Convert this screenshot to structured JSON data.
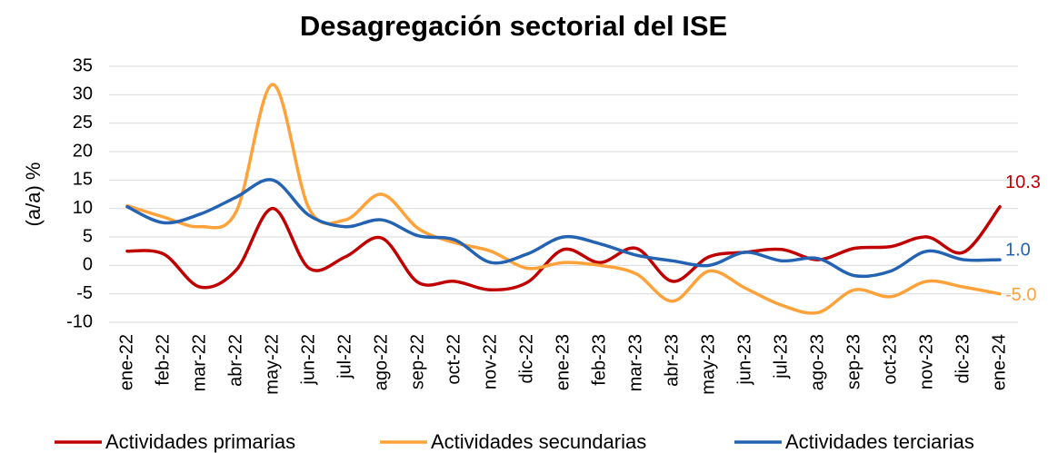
{
  "chart_data": {
    "type": "line",
    "title": "Desagregación sectorial del ISE",
    "y_label": "(a/a) %",
    "categories": [
      "ene-22",
      "feb-22",
      "mar-22",
      "abr-22",
      "may-22",
      "jun-22",
      "jul-22",
      "ago-22",
      "sep-22",
      "oct-22",
      "nov-22",
      "dic-22",
      "ene-23",
      "feb-23",
      "mar-23",
      "abr-23",
      "may-23",
      "jun-23",
      "jul-23",
      "ago-23",
      "sep-23",
      "oct-23",
      "nov-23",
      "dic-23",
      "ene-24"
    ],
    "series": [
      {
        "name": "Actividades primarias",
        "color": "#c00000",
        "values": [
          2.5,
          2.0,
          -3.8,
          -0.8,
          10.0,
          -0.5,
          1.5,
          4.8,
          -3.0,
          -2.8,
          -4.3,
          -3.0,
          2.8,
          0.5,
          3.0,
          -2.8,
          1.5,
          2.3,
          2.8,
          1.0,
          3.0,
          3.3,
          5.0,
          2.3,
          10.3
        ],
        "value_labels": [
          null,
          null,
          null,
          null,
          null,
          null,
          null,
          null,
          null,
          null,
          null,
          null,
          null,
          null,
          null,
          null,
          null,
          null,
          null,
          null,
          null,
          null,
          null,
          null,
          "10.3"
        ]
      },
      {
        "name": "Actividades secundarias",
        "color": "#ffa23a",
        "values": [
          10.5,
          8.5,
          6.8,
          9.5,
          31.8,
          10.0,
          8.0,
          12.5,
          6.5,
          4.0,
          2.5,
          -0.5,
          0.5,
          0.0,
          -1.5,
          -6.3,
          -1.0,
          -4.0,
          -7.0,
          -8.3,
          -4.3,
          -5.5,
          -2.8,
          -3.8,
          -5.0
        ],
        "value_labels": [
          null,
          null,
          null,
          null,
          null,
          null,
          null,
          null,
          null,
          null,
          null,
          null,
          null,
          null,
          null,
          null,
          null,
          null,
          null,
          null,
          null,
          null,
          null,
          null,
          "-5.0"
        ]
      },
      {
        "name": "Actividades terciarias",
        "color": "#2463b2",
        "values": [
          10.3,
          7.5,
          9.0,
          12.0,
          15.0,
          8.8,
          6.8,
          8.0,
          5.2,
          4.5,
          0.5,
          2.0,
          5.0,
          3.8,
          1.8,
          0.8,
          0.0,
          2.3,
          0.8,
          1.2,
          -1.8,
          -1.0,
          2.5,
          1.0,
          1.0
        ],
        "value_labels": [
          null,
          null,
          null,
          null,
          null,
          null,
          null,
          null,
          null,
          null,
          null,
          null,
          null,
          null,
          null,
          null,
          null,
          null,
          null,
          null,
          null,
          null,
          null,
          null,
          "1.0"
        ]
      }
    ],
    "ylim": [
      -10,
      35
    ],
    "yticks": [
      -10,
      -5,
      0,
      5,
      10,
      15,
      20,
      25,
      30,
      35
    ],
    "grid": true,
    "legend": "bottom"
  }
}
